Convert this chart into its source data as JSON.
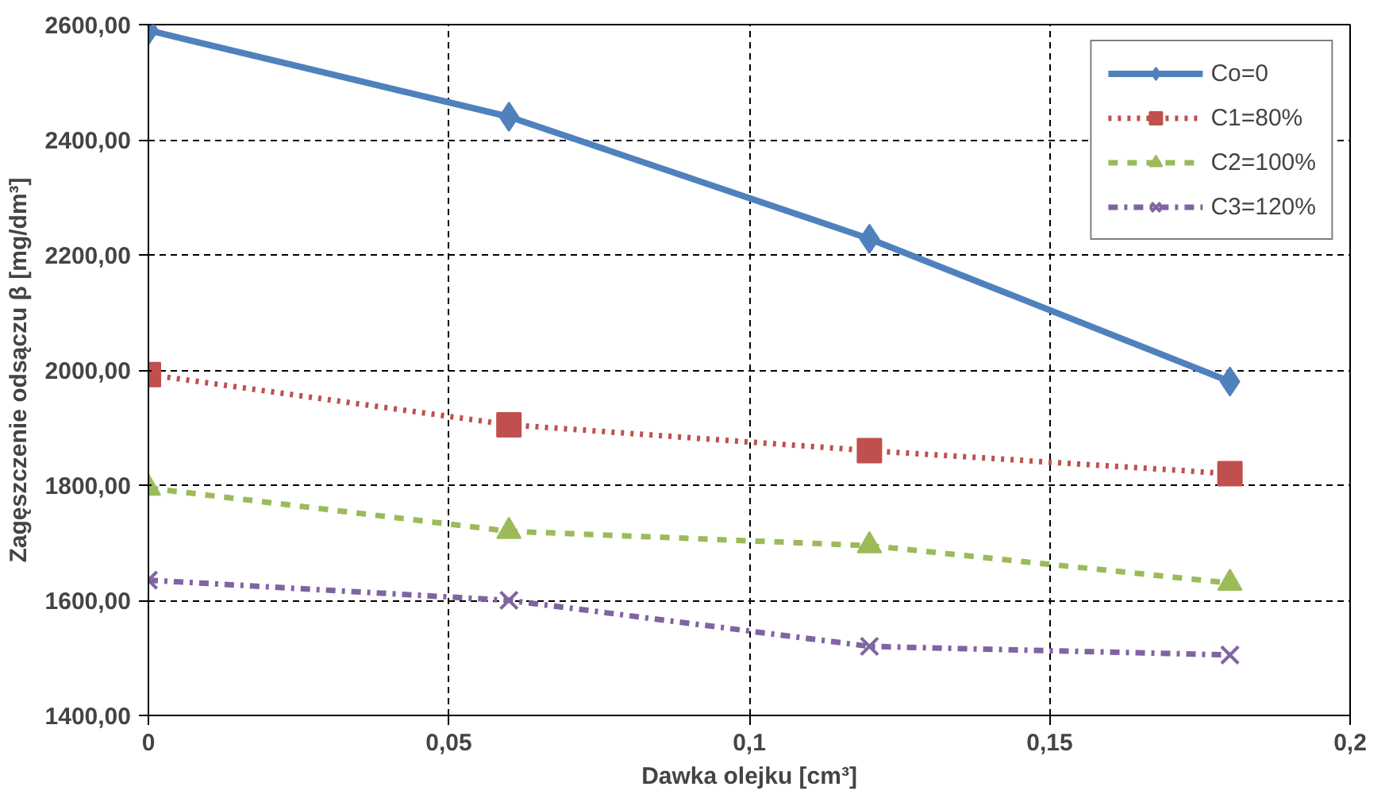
{
  "chart_data": {
    "type": "line",
    "xlabel": "Dawka olejku [cm³]",
    "ylabel": "Zagęszczenie odsączu β [mg/dm³]",
    "x": [
      0,
      0.06,
      0.12,
      0.18
    ],
    "xlim": [
      0,
      0.2
    ],
    "xticks": [
      0,
      {
        "value": 0.05,
        "label": "0,05"
      },
      {
        "value": 0.1,
        "label": "0,1"
      },
      {
        "value": 0.15,
        "label": "0,15"
      },
      {
        "value": 0.2,
        "label": "0,2"
      }
    ],
    "ylim": [
      1400,
      2600
    ],
    "yticks": [
      {
        "value": 1400,
        "label": "1400,00"
      },
      {
        "value": 1600,
        "label": "1600,00"
      },
      {
        "value": 1800,
        "label": "1800,00"
      },
      {
        "value": 2000,
        "label": "2000,00"
      },
      {
        "value": 2200,
        "label": "2200,00"
      },
      {
        "value": 2400,
        "label": "2400,00"
      },
      {
        "value": 2600,
        "label": "2600,00"
      }
    ],
    "grid": true,
    "legend": "top right",
    "series": [
      {
        "name": "Co=0",
        "color": "#4f81bd",
        "values": [
          2590,
          2440,
          2228,
          1980
        ],
        "marker": "diamond",
        "line_style": "solid"
      },
      {
        "name": "C1=80%",
        "color": "#c0504d",
        "values": [
          1992,
          1905,
          1860,
          1820
        ],
        "marker": "square",
        "line_style": "dotted"
      },
      {
        "name": "C2=100%",
        "color": "#9bbb59",
        "values": [
          1795,
          1720,
          1695,
          1630
        ],
        "marker": "triangle",
        "line_style": "dashed"
      },
      {
        "name": "C3=120%",
        "color": "#8064a2",
        "values": [
          1635,
          1600,
          1520,
          1505
        ],
        "marker": "cross",
        "line_style": "dashdot"
      }
    ]
  }
}
